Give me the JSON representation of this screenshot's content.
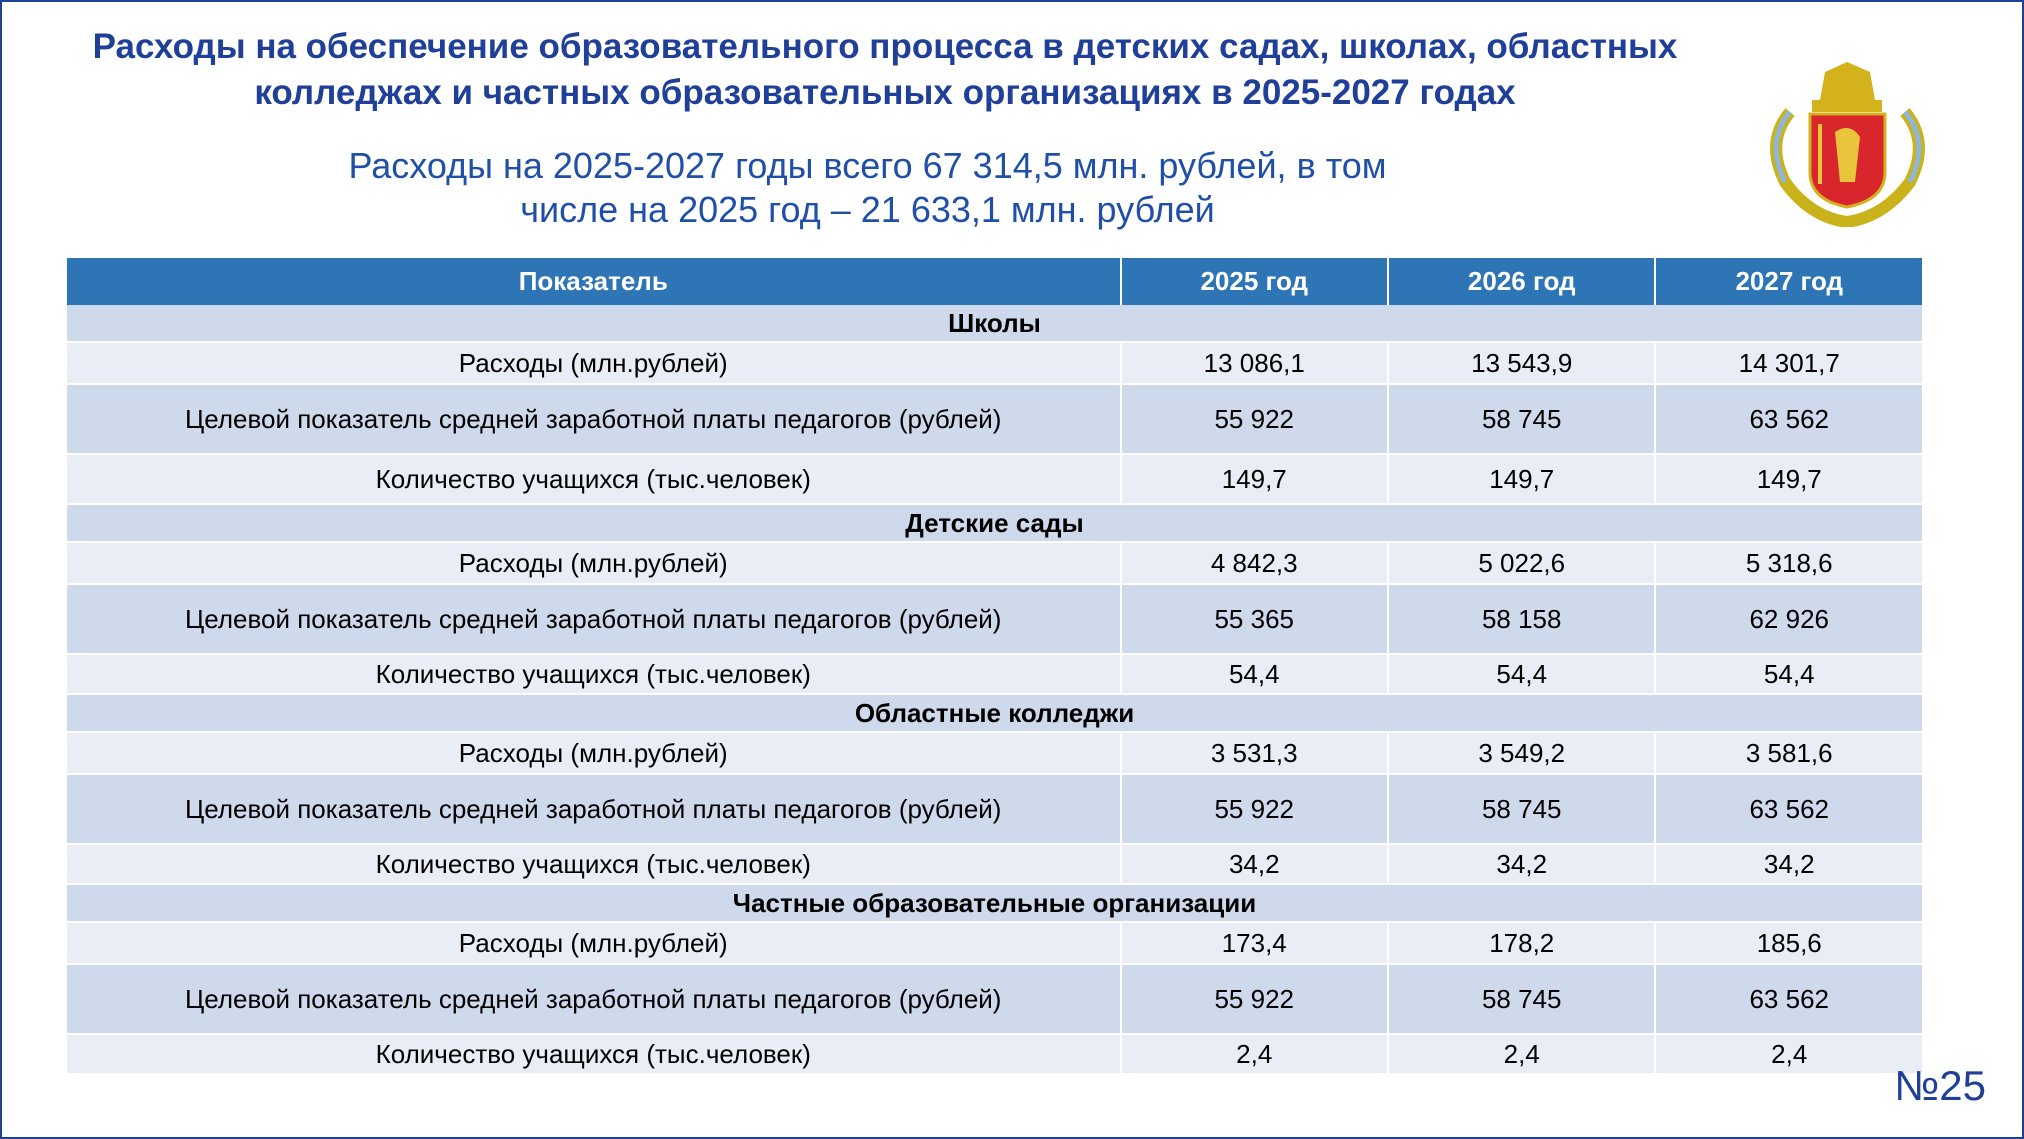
{
  "header": {
    "title": "Расходы на обеспечение образовательного процесса в детских садах, школах, областных колледжах и частных образовательных организациях в 2025-2027 годах",
    "subtitle": "Расходы на 2025-2027 годы всего 67 314,5 млн. рублей, в том числе на 2025 год – 21 633,1 млн. рублей"
  },
  "table": {
    "columns": [
      "Показатель",
      "2025 год",
      "2026 год",
      "2027 год"
    ],
    "sections": [
      {
        "name": "Школы",
        "rows": [
          [
            "Расходы (млн.рублей)",
            "13 086,1",
            "13 543,9",
            "14 301,7"
          ],
          [
            "Целевой показатель средней заработной платы педагогов (рублей)",
            "55 922",
            "58 745",
            "63 562"
          ],
          [
            "Количество учащихся (тыс.человек)",
            "149,7",
            "149,7",
            "149,7"
          ]
        ]
      },
      {
        "name": "Детские сады",
        "rows": [
          [
            "Расходы (млн.рублей)",
            "4 842,3",
            "5 022,6",
            "5 318,6"
          ],
          [
            "Целевой показатель средней заработной платы педагогов (рублей)",
            "55 365",
            "58 158",
            "62 926"
          ],
          [
            "Количество учащихся (тыс.человек)",
            "54,4",
            "54,4",
            "54,4"
          ]
        ]
      },
      {
        "name": "Областные колледжи",
        "rows": [
          [
            "Расходы (млн.рублей)",
            "3 531,3",
            "3 549,2",
            "3 581,6"
          ],
          [
            "Целевой показатель средней заработной платы педагогов (рублей)",
            "55 922",
            "58 745",
            "63 562"
          ],
          [
            "Количество учащихся (тыс.человек)",
            "34,2",
            "34,2",
            "34,2"
          ]
        ]
      },
      {
        "name": "Частные образовательные организации",
        "rows": [
          [
            "Расходы (млн.рублей)",
            "173,4",
            "178,2",
            "185,6"
          ],
          [
            "Целевой показатель средней заработной платы педагогов (рублей)",
            "55 922",
            "58 745",
            "63 562"
          ],
          [
            "Количество учащихся (тыс.человек)",
            "2,4",
            "2,4",
            "2,4"
          ]
        ]
      }
    ]
  },
  "page_number": "№25"
}
